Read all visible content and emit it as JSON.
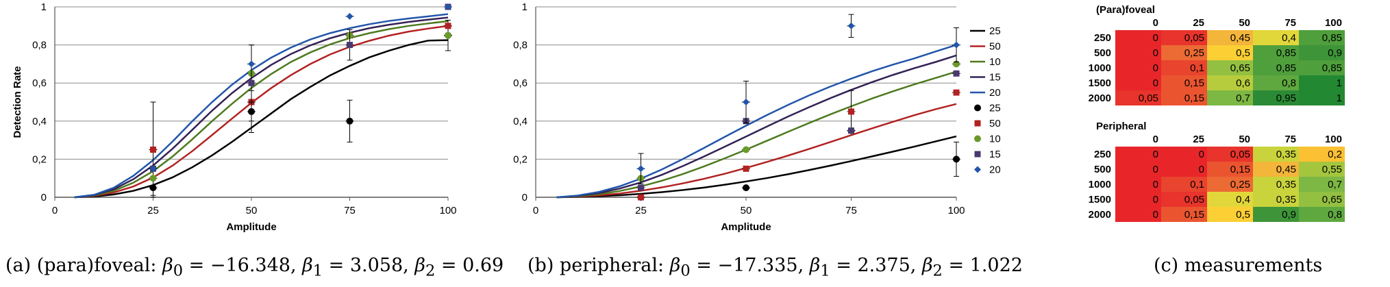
{
  "chart_data": [
    {
      "type": "line",
      "title": "",
      "xlabel": "Amplitude",
      "ylabel": "Detection Rate",
      "xlim": [
        0,
        100
      ],
      "ylim": [
        0,
        1
      ],
      "xticks": [
        "0",
        "25",
        "50",
        "75",
        "100"
      ],
      "yticks": [
        "0",
        "0,2",
        "0,4",
        "0,6",
        "0,8",
        "1"
      ],
      "grid": true,
      "model_series": [
        {
          "name": "250",
          "color": "#000000",
          "x": [
            5,
            10,
            15,
            20,
            25,
            30,
            35,
            40,
            45,
            50,
            55,
            60,
            65,
            70,
            75,
            80,
            85,
            90,
            95,
            100
          ],
          "y": [
            0.0,
            0.004,
            0.015,
            0.034,
            0.064,
            0.105,
            0.158,
            0.22,
            0.29,
            0.365,
            0.44,
            0.515,
            0.58,
            0.64,
            0.69,
            0.735,
            0.77,
            0.8,
            0.823,
            0.825
          ]
        },
        {
          "name": "500",
          "color": "#b22222",
          "x": [
            5,
            10,
            15,
            20,
            25,
            30,
            35,
            40,
            45,
            50,
            55,
            60,
            65,
            70,
            75,
            80,
            85,
            90,
            95,
            100
          ],
          "y": [
            0.0,
            0.007,
            0.025,
            0.057,
            0.104,
            0.167,
            0.243,
            0.327,
            0.412,
            0.496,
            0.573,
            0.641,
            0.7,
            0.75,
            0.79,
            0.822,
            0.849,
            0.87,
            0.886,
            0.9
          ]
        },
        {
          "name": "1000",
          "color": "#4d7a1f",
          "x": [
            5,
            10,
            15,
            20,
            25,
            30,
            35,
            40,
            45,
            50,
            55,
            60,
            65,
            70,
            75,
            80,
            85,
            90,
            95,
            100
          ],
          "y": [
            0.0,
            0.009,
            0.034,
            0.077,
            0.137,
            0.215,
            0.305,
            0.4,
            0.49,
            0.574,
            0.647,
            0.71,
            0.761,
            0.803,
            0.836,
            0.862,
            0.883,
            0.9,
            0.913,
            0.925
          ]
        },
        {
          "name": "1500",
          "color": "#332255",
          "x": [
            5,
            10,
            15,
            20,
            25,
            30,
            35,
            40,
            45,
            50,
            55,
            60,
            65,
            70,
            75,
            80,
            85,
            90,
            95,
            100
          ],
          "y": [
            0.0,
            0.011,
            0.042,
            0.095,
            0.167,
            0.256,
            0.355,
            0.455,
            0.546,
            0.626,
            0.695,
            0.752,
            0.798,
            0.835,
            0.864,
            0.888,
            0.906,
            0.921,
            0.933,
            0.944
          ]
        },
        {
          "name": "2000",
          "color": "#2255aa",
          "x": [
            5,
            10,
            15,
            20,
            25,
            30,
            35,
            40,
            45,
            50,
            55,
            60,
            65,
            70,
            75,
            80,
            85,
            90,
            95,
            100
          ],
          "y": [
            0.0,
            0.013,
            0.05,
            0.113,
            0.195,
            0.294,
            0.4,
            0.5,
            0.59,
            0.668,
            0.733,
            0.786,
            0.829,
            0.862,
            0.888,
            0.909,
            0.926,
            0.939,
            0.95,
            0.962
          ]
        }
      ],
      "measured_series": [
        {
          "name": "250",
          "color": "#000000",
          "marker": "circle",
          "x": [
            25,
            50,
            75,
            100
          ],
          "y": [
            0.05,
            0.45,
            0.4,
            0.85
          ],
          "err": [
            0.04,
            0.11,
            0.11,
            0.08
          ]
        },
        {
          "name": "500",
          "color": "#b22222",
          "marker": "square",
          "x": [
            25,
            50,
            75,
            100
          ],
          "y": [
            0.25,
            0.5,
            0.85,
            0.9
          ],
          "err": [
            0.25,
            0.0,
            0.0,
            0.0
          ]
        },
        {
          "name": "1000",
          "color": "#6b9a2a",
          "marker": "circle",
          "x": [
            25,
            50,
            75,
            100
          ],
          "y": [
            0.1,
            0.65,
            0.85,
            0.85
          ],
          "err": [
            0.0,
            0.15,
            0.0,
            0.0
          ]
        },
        {
          "name": "1500",
          "color": "#4a3870",
          "marker": "square",
          "x": [
            25,
            50,
            75,
            100
          ],
          "y": [
            0.15,
            0.6,
            0.8,
            1.0
          ],
          "err": [
            0.0,
            0.2,
            0.08,
            0.0
          ]
        },
        {
          "name": "2000",
          "color": "#2255aa",
          "marker": "diamond",
          "x": [
            25,
            50,
            75,
            100
          ],
          "y": [
            0.15,
            0.7,
            0.95,
            1.0
          ],
          "err": [
            0.0,
            0.0,
            0.0,
            0.0
          ]
        }
      ]
    },
    {
      "type": "line",
      "title": "",
      "xlabel": "Amplitude",
      "ylabel": "Detection Rate",
      "xlim": [
        0,
        100
      ],
      "ylim": [
        0,
        1
      ],
      "xticks": [
        "0",
        "25",
        "50",
        "75",
        "100"
      ],
      "yticks": [
        "0",
        "0,2",
        "0,4",
        "0,6",
        "0,8",
        "1"
      ],
      "grid": true,
      "legend": {
        "position": "right",
        "line_entries": [
          "250",
          "500",
          "1000",
          "1500",
          "2000"
        ],
        "marker_entries": [
          "250",
          "500",
          "1000",
          "1500",
          "2000"
        ]
      },
      "model_series": [
        {
          "name": "250",
          "color": "#000000",
          "x": [
            5,
            10,
            15,
            20,
            25,
            30,
            35,
            40,
            45,
            50,
            55,
            60,
            65,
            70,
            75,
            80,
            85,
            90,
            95,
            100
          ],
          "y": [
            0.0,
            0.002,
            0.006,
            0.011,
            0.018,
            0.027,
            0.038,
            0.051,
            0.066,
            0.083,
            0.101,
            0.121,
            0.143,
            0.166,
            0.19,
            0.215,
            0.24,
            0.266,
            0.293,
            0.32
          ]
        },
        {
          "name": "500",
          "color": "#b22222",
          "x": [
            5,
            10,
            15,
            20,
            25,
            30,
            35,
            40,
            45,
            50,
            55,
            60,
            65,
            70,
            75,
            80,
            85,
            90,
            95,
            100
          ],
          "y": [
            0.0,
            0.003,
            0.01,
            0.02,
            0.034,
            0.052,
            0.073,
            0.097,
            0.124,
            0.154,
            0.186,
            0.219,
            0.254,
            0.29,
            0.326,
            0.362,
            0.397,
            0.431,
            0.462,
            0.49
          ]
        },
        {
          "name": "1000",
          "color": "#4d7a1f",
          "x": [
            5,
            10,
            15,
            20,
            25,
            30,
            35,
            40,
            45,
            50,
            55,
            60,
            65,
            70,
            75,
            80,
            85,
            90,
            95,
            100
          ],
          "y": [
            0.0,
            0.005,
            0.016,
            0.033,
            0.057,
            0.087,
            0.122,
            0.162,
            0.205,
            0.25,
            0.297,
            0.344,
            0.39,
            0.435,
            0.478,
            0.519,
            0.557,
            0.593,
            0.626,
            0.66
          ]
        },
        {
          "name": "1500",
          "color": "#332255",
          "x": [
            5,
            10,
            15,
            20,
            25,
            30,
            35,
            40,
            45,
            50,
            55,
            60,
            65,
            70,
            75,
            80,
            85,
            90,
            95,
            100
          ],
          "y": [
            0.0,
            0.007,
            0.022,
            0.046,
            0.078,
            0.118,
            0.164,
            0.214,
            0.266,
            0.319,
            0.372,
            0.424,
            0.473,
            0.52,
            0.564,
            0.605,
            0.643,
            0.678,
            0.71,
            0.745
          ]
        },
        {
          "name": "2000",
          "color": "#2255aa",
          "x": [
            5,
            10,
            15,
            20,
            25,
            30,
            35,
            40,
            45,
            50,
            55,
            60,
            65,
            70,
            75,
            80,
            85,
            90,
            95,
            100
          ],
          "y": [
            0.0,
            0.009,
            0.028,
            0.058,
            0.098,
            0.146,
            0.201,
            0.259,
            0.318,
            0.376,
            0.432,
            0.485,
            0.535,
            0.581,
            0.623,
            0.662,
            0.697,
            0.729,
            0.765,
            0.8
          ]
        }
      ],
      "measured_series": [
        {
          "name": "250",
          "color": "#000000",
          "marker": "circle",
          "x": [
            25,
            50,
            75,
            100
          ],
          "y": [
            0.0,
            0.05,
            0.35,
            0.2
          ],
          "err": [
            0.0,
            0.0,
            0.0,
            0.09
          ]
        },
        {
          "name": "500",
          "color": "#b22222",
          "marker": "square",
          "x": [
            25,
            50,
            75,
            100
          ],
          "y": [
            0.0,
            0.15,
            0.45,
            0.55
          ],
          "err": [
            0.0,
            0.0,
            0.11,
            0.0
          ]
        },
        {
          "name": "1000",
          "color": "#6b9a2a",
          "marker": "circle",
          "x": [
            25,
            50,
            75,
            100
          ],
          "y": [
            0.1,
            0.25,
            0.35,
            0.7
          ],
          "err": [
            0.0,
            0.0,
            0.0,
            0.0
          ]
        },
        {
          "name": "1500",
          "color": "#4a3870",
          "marker": "square",
          "x": [
            25,
            50,
            75,
            100
          ],
          "y": [
            0.05,
            0.4,
            0.35,
            0.65
          ],
          "err": [
            0.0,
            0.0,
            0.0,
            0.0
          ]
        },
        {
          "name": "2000",
          "color": "#2255aa",
          "marker": "diamond",
          "x": [
            25,
            50,
            75,
            100
          ],
          "y": [
            0.15,
            0.5,
            0.9,
            0.8
          ],
          "err": [
            0.08,
            0.11,
            0.06,
            0.09
          ]
        }
      ]
    },
    {
      "type": "heatmap",
      "title": "(Para)foveal",
      "columns": [
        "0",
        "25",
        "50",
        "75",
        "100"
      ],
      "rows": [
        "250",
        "500",
        "1000",
        "1500",
        "2000"
      ],
      "values": [
        [
          "0",
          "0,05",
          "0,45",
          "0,4",
          "0,85"
        ],
        [
          "0",
          "0,25",
          "0,5",
          "0,85",
          "0,9"
        ],
        [
          "0",
          "0,1",
          "0,65",
          "0,85",
          "0,85"
        ],
        [
          "0",
          "0,15",
          "0,6",
          "0,8",
          "1"
        ],
        [
          "0,05",
          "0,15",
          "0,7",
          "0,95",
          "1"
        ]
      ]
    },
    {
      "type": "heatmap",
      "title": "Peripheral",
      "columns": [
        "0",
        "25",
        "50",
        "75",
        "100"
      ],
      "rows": [
        "250",
        "500",
        "1000",
        "1500",
        "2000"
      ],
      "values": [
        [
          "0",
          "0",
          "0,05",
          "0,35",
          "0,2"
        ],
        [
          "0",
          "0",
          "0,15",
          "0,45",
          "0,55"
        ],
        [
          "0",
          "0,1",
          "0,25",
          "0,35",
          "0,7"
        ],
        [
          "0",
          "0,05",
          "0,4",
          "0,35",
          "0,65"
        ],
        [
          "0",
          "0,15",
          "0,5",
          "0,9",
          "0,8"
        ]
      ]
    }
  ],
  "captions": {
    "a": {
      "prefix": "(a)  (para)foveal:",
      "b0": "−16.348",
      "b1": "3.058",
      "b2": "0.69"
    },
    "b": {
      "prefix": "(b)  peripheral:",
      "b0": "−17.335",
      "b1": "2.375",
      "b2": "1.022"
    },
    "c": {
      "text": "(c)  measurements"
    }
  },
  "heat_colors": {
    "0": "#e8262a",
    "0.05": "#e8342c",
    "0.1": "#e9442e",
    "0.15": "#ea5530",
    "0.2": "#fcc033",
    "0.25": "#ec6a34",
    "0.35": "#c9d33c",
    "0.4": "#e2d73a",
    "0.45": "#f4b53b",
    "0.5": "#fccf35",
    "0.55": "#a4c63f",
    "0.6": "#b7cc3d",
    "0.65": "#93c041",
    "0.7": "#7db744",
    "0.8": "#5fa83f",
    "0.85": "#4f9f3c",
    "0.9": "#3e9438",
    "0.95": "#2b8a35",
    "1": "#228832"
  }
}
